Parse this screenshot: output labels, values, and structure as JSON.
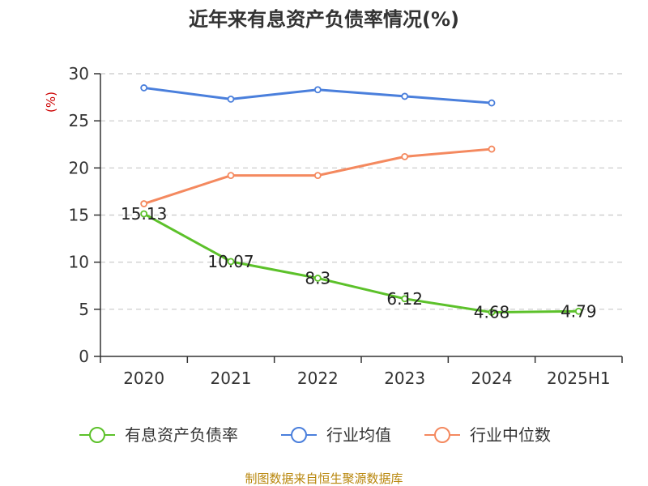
{
  "chart_data": {
    "type": "line",
    "title": "近年来有息资产负债率情况(%)",
    "unit_label": "(%)",
    "categories": [
      "2020",
      "2021",
      "2022",
      "2023",
      "2024",
      "2025H1"
    ],
    "ylim": [
      0,
      30
    ],
    "yticks": [
      0,
      5,
      10,
      15,
      20,
      25,
      30
    ],
    "grid": true,
    "legend_position": "bottom",
    "series": [
      {
        "name": "有息资产负债率",
        "color": "#5cc12a",
        "values": [
          15.13,
          10.07,
          8.3,
          6.12,
          4.68,
          4.79
        ],
        "data_labels": [
          "15.13",
          "10.07",
          "8.3",
          "6.12",
          "4.68",
          "4.79"
        ]
      },
      {
        "name": "行业均值",
        "color": "#4a7fdc",
        "values": [
          28.5,
          27.3,
          28.3,
          27.6,
          26.9,
          null
        ]
      },
      {
        "name": "行业中位数",
        "color": "#f4895f",
        "values": [
          16.2,
          19.2,
          19.2,
          21.2,
          22.0,
          null
        ]
      }
    ],
    "source": "制图数据来自恒生聚源数据库"
  }
}
